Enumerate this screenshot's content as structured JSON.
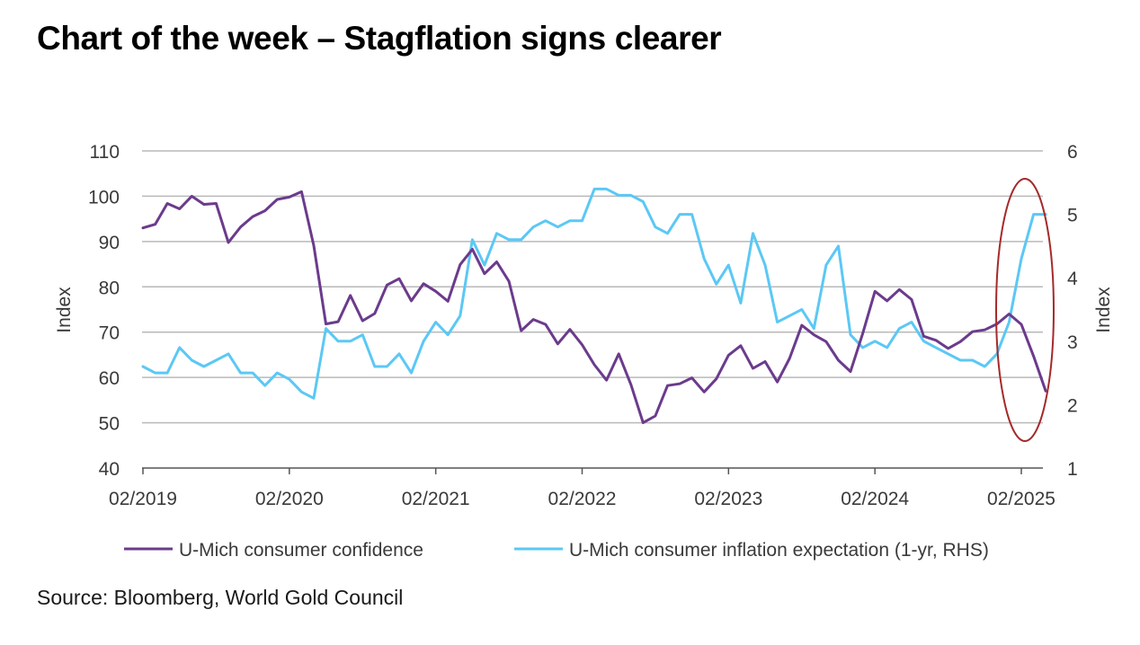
{
  "title": "Chart of the week – Stagflation signs clearer",
  "source": "Source: Bloomberg, World Gold Council",
  "colors": {
    "confidence": "#6B3B8C",
    "inflation": "#5BC8F5",
    "grid": "#b9b9b9",
    "axis": "#555555",
    "highlight": "#A52A2A"
  },
  "chart_data": {
    "type": "line",
    "title": "Chart of the week – Stagflation signs clearer",
    "ylabel": "Index",
    "y2label": "Index",
    "ylim": [
      40,
      110
    ],
    "y2lim": [
      1,
      6
    ],
    "yticks": [
      "110",
      "100",
      "90",
      "80",
      "70",
      "60",
      "50",
      "40"
    ],
    "y2ticks": [
      "6",
      "5",
      "4",
      "3",
      "2",
      "1"
    ],
    "xticks": [
      "02/2019",
      "02/2020",
      "02/2021",
      "02/2022",
      "02/2023",
      "02/2024",
      "02/2025"
    ],
    "legend_position": "bottom",
    "annotation": "red ellipse highlighting early 2025",
    "x_start": "02/2019",
    "frequency": "monthly",
    "series": [
      {
        "name": "U-Mich consumer confidence",
        "axis": "left",
        "values": [
          93.0,
          93.8,
          98.4,
          97.2,
          100.0,
          98.2,
          98.4,
          89.8,
          93.2,
          95.5,
          96.8,
          99.3,
          99.8,
          101.0,
          89.1,
          71.8,
          72.3,
          78.1,
          72.5,
          74.1,
          80.4,
          81.8,
          76.9,
          80.7,
          79.0,
          76.8,
          84.9,
          88.3,
          82.9,
          85.5,
          81.2,
          70.3,
          72.8,
          71.7,
          67.4,
          70.6,
          67.2,
          62.8,
          59.4,
          65.2,
          58.4,
          50.0,
          51.5,
          58.2,
          58.6,
          59.9,
          56.8,
          59.7,
          64.9,
          67.0,
          62.0,
          63.5,
          59.0,
          64.2,
          71.5,
          69.4,
          67.9,
          63.8,
          61.3,
          69.7,
          79.0,
          76.9,
          79.4,
          77.2,
          69.1,
          68.2,
          66.4,
          67.9,
          70.1,
          70.5,
          71.8,
          74.0,
          71.7,
          64.7,
          57.0
        ]
      },
      {
        "name": "U-Mich consumer inflation expectation (1-yr, RHS)",
        "axis": "right",
        "values": [
          2.6,
          2.5,
          2.5,
          2.9,
          2.7,
          2.6,
          2.7,
          2.8,
          2.5,
          2.5,
          2.3,
          2.5,
          2.4,
          2.2,
          2.1,
          3.2,
          3.0,
          3.0,
          3.1,
          2.6,
          2.6,
          2.8,
          2.5,
          3.0,
          3.3,
          3.1,
          3.4,
          4.6,
          4.2,
          4.7,
          4.6,
          4.6,
          4.8,
          4.9,
          4.8,
          4.9,
          4.9,
          5.4,
          5.4,
          5.3,
          5.3,
          5.2,
          4.8,
          4.7,
          5.0,
          5.0,
          4.3,
          3.9,
          4.2,
          3.6,
          4.7,
          4.2,
          3.3,
          3.4,
          3.5,
          3.2,
          4.2,
          4.5,
          3.1,
          2.9,
          3.0,
          2.9,
          3.2,
          3.3,
          3.0,
          2.9,
          2.8,
          2.7,
          2.7,
          2.6,
          2.8,
          3.3,
          4.3,
          5.0,
          5.0
        ]
      }
    ]
  }
}
